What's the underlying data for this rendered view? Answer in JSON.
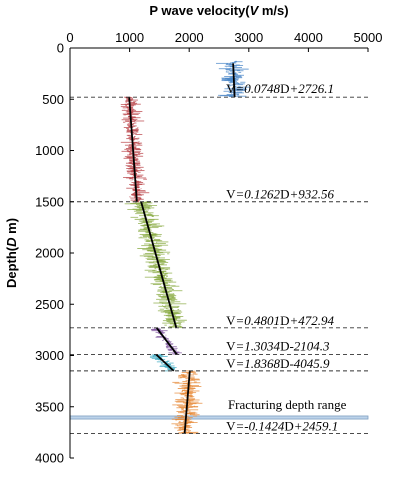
{
  "chart_data": {
    "type": "line",
    "x_label": "P wave velocity(V m/s)",
    "x_label_parts": [
      "P wave velocity(",
      "V",
      " m/s)"
    ],
    "y_label": "Depth(D m)",
    "y_label_parts": [
      "Depth(",
      "D",
      " m)"
    ],
    "xlim": [
      0,
      5000
    ],
    "ylim": [
      4000,
      0
    ],
    "x_ticks": [
      "0",
      "1000",
      "2000",
      "3000",
      "4000",
      "5000"
    ],
    "y_ticks": [
      "0",
      "500",
      "1000",
      "1500",
      "2000",
      "2500",
      "3000",
      "3500",
      "4000"
    ],
    "x_tick_values": [
      0,
      1000,
      2000,
      3000,
      4000,
      5000
    ],
    "y_tick_values": [
      0,
      500,
      1000,
      1500,
      2000,
      2500,
      3000,
      3500,
      4000
    ],
    "boundaries": [
      480,
      1500,
      2730,
      2990,
      3150,
      3760
    ],
    "fracturing_band": [
      3590,
      3620
    ],
    "fracturing_label": "Fracturing depth range",
    "series": [
      {
        "depth_range": [
          130,
          480
        ],
        "color": "#3f7fc4",
        "fit": [
          0.0748,
          2726.1
        ],
        "fit_depth": [
          150,
          480
        ],
        "label": "V=0.0748D+2726.1",
        "label_parts": [
          "V",
          "=0.0748",
          "D",
          "+2726.1"
        ],
        "label_depth": 440,
        "label_v": 2620,
        "noise": 420
      },
      {
        "depth_range": [
          480,
          1500
        ],
        "color": "#b5383d",
        "fit": [
          0.1262,
          932.56
        ],
        "fit_depth": [
          480,
          1500
        ],
        "label": "V=0.1262D+932.56",
        "label_parts": [
          "V",
          "=0.1262",
          "D",
          "+932.56"
        ],
        "label_depth": 1470,
        "label_v": 2620,
        "noise": 300
      },
      {
        "depth_range": [
          1500,
          2730
        ],
        "color": "#85a83d",
        "fit": [
          0.4801,
          472.94
        ],
        "fit_depth": [
          1500,
          2730
        ],
        "label": "V=0.4801D+472.94",
        "label_parts": [
          "V",
          "=0.4801",
          "D",
          "+472.94"
        ],
        "label_depth": 2700,
        "label_v": 2620,
        "noise": 420
      },
      {
        "depth_range": [
          2730,
          2990
        ],
        "color": "#7a4d9a",
        "fit": [
          1.3034,
          -2104.3
        ],
        "fit_depth": [
          2730,
          2990
        ],
        "label": "V=1.3034D-2104.3",
        "label_parts": [
          "V",
          "=1.3034",
          "D",
          "-2104.3"
        ],
        "label_depth": 2950,
        "label_v": 2620,
        "noise": 200
      },
      {
        "depth_range": [
          2990,
          3150
        ],
        "color": "#35a7c0",
        "fit": [
          1.8368,
          -4045.9
        ],
        "fit_depth": [
          2990,
          3150
        ],
        "label": "V=1.8368D-4045.9",
        "label_parts": [
          "V",
          "=1.8368",
          "D",
          "-4045.9"
        ],
        "label_depth": 3120,
        "label_v": 2620,
        "noise": 260
      },
      {
        "depth_range": [
          3150,
          3760
        ],
        "color": "#e5842f",
        "fit": [
          -0.1424,
          2459.1
        ],
        "fit_depth": [
          3150,
          3760
        ],
        "label": "V=-0.1424D+2459.1",
        "label_parts": [
          "V",
          "=-0.1424",
          "D",
          "+2459.1"
        ],
        "label_depth": 3730,
        "label_v": 2620,
        "noise": 380
      }
    ]
  }
}
